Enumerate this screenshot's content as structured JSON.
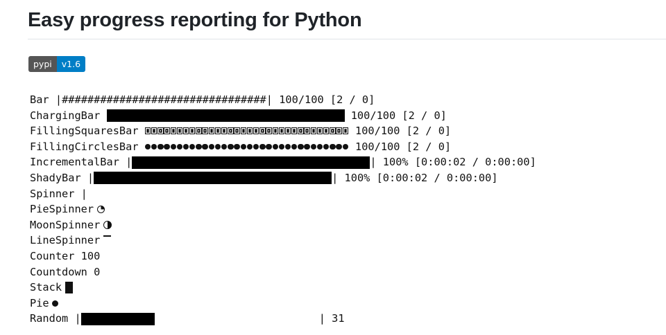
{
  "page": {
    "title": "Easy progress reporting for Python"
  },
  "badge": {
    "label": "pypi",
    "version": "v1.6",
    "label_color": "#555555",
    "version_color": "#007ec6"
  },
  "console": {
    "rows": [
      {
        "name": "Bar",
        "prefix": "Bar |",
        "bar_text": "################################",
        "suffix": "| 100/100 [2 / 0]",
        "progress": 1.0
      },
      {
        "name": "ChargingBar",
        "prefix": "ChargingBar ",
        "suffix": " 100/100 [2 / 0]",
        "progress": 1.0
      },
      {
        "name": "FillingSquaresBar",
        "prefix": "FillingSquaresBar ",
        "suffix": " 100/100 [2 / 0]",
        "progress": 1.0
      },
      {
        "name": "FillingCirclesBar",
        "prefix": "FillingCirclesBar ",
        "suffix": " 100/100 [2 / 0]",
        "progress": 1.0
      },
      {
        "name": "IncrementalBar",
        "prefix": "IncrementalBar |",
        "suffix": "| 100% [0:00:02 / 0:00:00]",
        "progress": 1.0
      },
      {
        "name": "ShadyBar",
        "prefix": "ShadyBar |",
        "suffix": "| 100% [0:00:02 / 0:00:00]",
        "progress": 1.0
      },
      {
        "name": "Spinner",
        "text": "Spinner |"
      },
      {
        "name": "PieSpinner",
        "text": "PieSpinner",
        "icon": "pie-spinner-icon"
      },
      {
        "name": "MoonSpinner",
        "text": "MoonSpinner",
        "icon": "moon-spinner-icon"
      },
      {
        "name": "LineSpinner",
        "text": "LineSpinner",
        "icon": "line-spinner-icon"
      },
      {
        "name": "Counter",
        "text": "Counter 100"
      },
      {
        "name": "Countdown",
        "text": "Countdown 0"
      },
      {
        "name": "Stack",
        "text": "Stack",
        "icon": "stack-block-icon"
      },
      {
        "name": "Pie",
        "text": "Pie",
        "icon": "pie-dot-icon"
      },
      {
        "name": "Random",
        "prefix": "Random |",
        "suffix": "| 31",
        "progress": 0.31
      }
    ]
  }
}
